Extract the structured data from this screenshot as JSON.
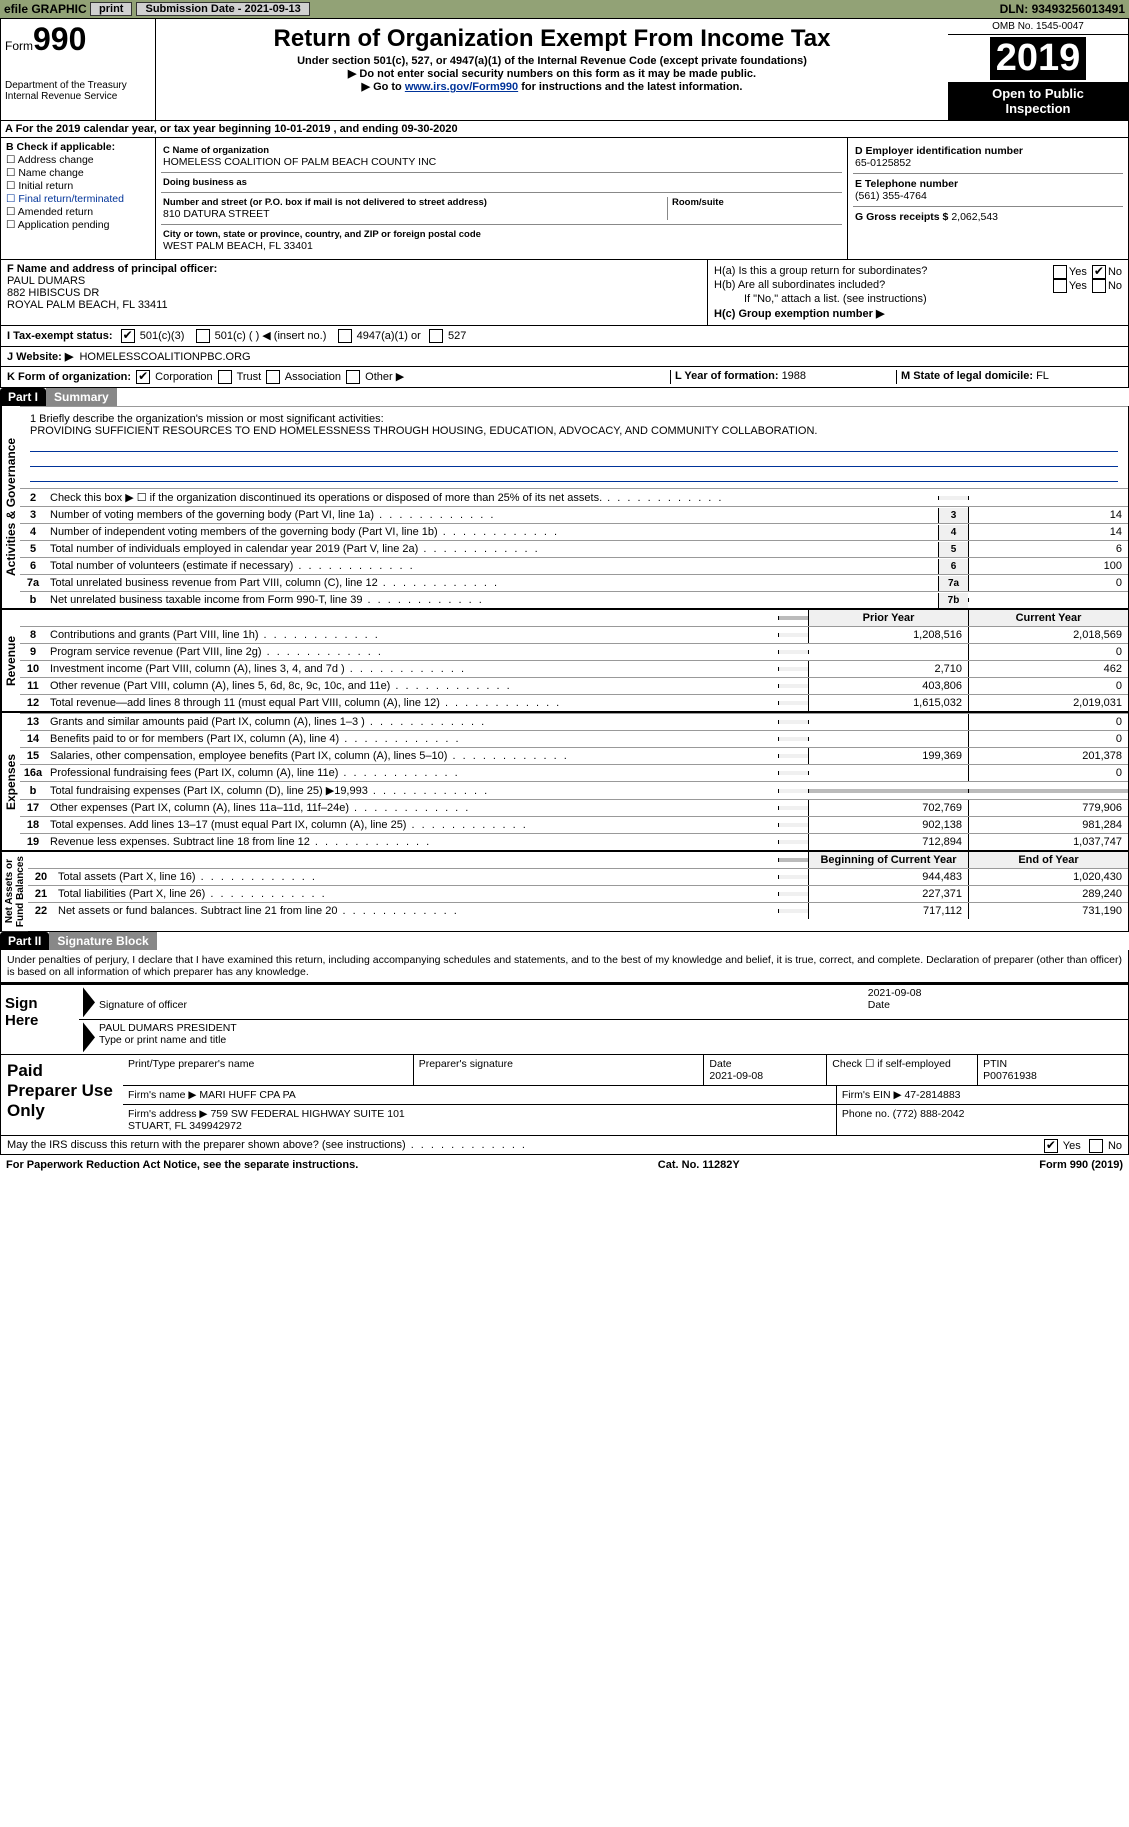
{
  "topbar": {
    "efile": "efile GRAPHIC",
    "print": "print",
    "subdate_label": "Submission Date - ",
    "subdate": "2021-09-13",
    "dln_label": "DLN: ",
    "dln": "93493256013491"
  },
  "header": {
    "form_word": "Form",
    "form_num": "990",
    "dept": "Department of the Treasury\nInternal Revenue Service",
    "title": "Return of Organization Exempt From Income Tax",
    "sub1": "Under section 501(c), 527, or 4947(a)(1) of the Internal Revenue Code (except private foundations)",
    "sub2": "▶ Do not enter social security numbers on this form as it may be made public.",
    "sub3_pre": "▶ Go to ",
    "sub3_link": "www.irs.gov/Form990",
    "sub3_post": " for instructions and the latest information.",
    "omb": "OMB No. 1545-0047",
    "year": "2019",
    "otp": "Open to Public\nInspection"
  },
  "line_a": "A For the 2019 calendar year, or tax year beginning 10-01-2019   , and ending 09-30-2020",
  "box_b": {
    "label": "B Check if applicable:",
    "items": [
      "Address change",
      "Name change",
      "Initial return",
      "Final return/terminated",
      "Amended return",
      "Application pending"
    ]
  },
  "box_c": {
    "name_label": "C Name of organization",
    "name": "HOMELESS COALITION OF PALM BEACH COUNTY INC",
    "dba_label": "Doing business as",
    "dba": "",
    "addr_label": "Number and street (or P.O. box if mail is not delivered to street address)",
    "room_label": "Room/suite",
    "addr": "810 DATURA STREET",
    "city_label": "City or town, state or province, country, and ZIP or foreign postal code",
    "city": "WEST PALM BEACH, FL  33401"
  },
  "box_d": {
    "label": "D Employer identification number",
    "value": "65-0125852"
  },
  "box_e": {
    "label": "E Telephone number",
    "value": "(561) 355-4764"
  },
  "box_g": {
    "label": "G Gross receipts $",
    "value": "2,062,543"
  },
  "box_f": {
    "label": "F  Name and address of principal officer:",
    "name": "PAUL DUMARS",
    "addr1": "882 HIBISCUS DR",
    "addr2": "ROYAL PALM BEACH, FL  33411"
  },
  "box_h": {
    "ha": "H(a)  Is this a group return for subordinates?",
    "hb": "H(b)  Are all subordinates included?",
    "hb_note": "If \"No,\" attach a list. (see instructions)",
    "hc": "H(c)  Group exemption number ▶",
    "yes": "Yes",
    "no": "No"
  },
  "row_i": {
    "label": "I   Tax-exempt status:",
    "o1": "501(c)(3)",
    "o2": "501(c) (  ) ◀ (insert no.)",
    "o3": "4947(a)(1) or",
    "o4": "527"
  },
  "row_j": {
    "label": "J   Website: ▶",
    "value": "HOMELESSCOALITIONPBC.ORG"
  },
  "row_k": {
    "label": "K Form of organization:",
    "o1": "Corporation",
    "o2": "Trust",
    "o3": "Association",
    "o4": "Other ▶",
    "l_label": "L Year of formation: ",
    "l_val": "1988",
    "m_label": "M State of legal domicile: ",
    "m_val": "FL"
  },
  "part1": {
    "tab": "Part I",
    "title": "Summary"
  },
  "mission": {
    "q": "1   Briefly describe the organization's mission or most significant activities:",
    "text": "PROVIDING SUFFICIENT RESOURCES TO END HOMELESSNESS THROUGH HOUSING, EDUCATION, ADVOCACY, AND COMMUNITY COLLABORATION."
  },
  "gov_label": "Activities & Governance",
  "gov_lines": [
    {
      "n": "2",
      "d": "Check this box ▶ ☐  if the organization discontinued its operations or disposed of more than 25% of its net assets.",
      "b": "",
      "v": ""
    },
    {
      "n": "3",
      "d": "Number of voting members of the governing body (Part VI, line 1a)",
      "b": "3",
      "v": "14"
    },
    {
      "n": "4",
      "d": "Number of independent voting members of the governing body (Part VI, line 1b)",
      "b": "4",
      "v": "14"
    },
    {
      "n": "5",
      "d": "Total number of individuals employed in calendar year 2019 (Part V, line 2a)",
      "b": "5",
      "v": "6"
    },
    {
      "n": "6",
      "d": "Total number of volunteers (estimate if necessary)",
      "b": "6",
      "v": "100"
    },
    {
      "n": "7a",
      "d": "Total unrelated business revenue from Part VIII, column (C), line 12",
      "b": "7a",
      "v": "0"
    },
    {
      "n": "b",
      "d": "Net unrelated business taxable income from Form 990-T, line 39",
      "b": "7b",
      "v": ""
    }
  ],
  "rev_label": "Revenue",
  "col_headers": {
    "prior": "Prior Year",
    "curr": "Current Year"
  },
  "rev_lines": [
    {
      "n": "8",
      "d": "Contributions and grants (Part VIII, line 1h)",
      "p": "1,208,516",
      "c": "2,018,569"
    },
    {
      "n": "9",
      "d": "Program service revenue (Part VIII, line 2g)",
      "p": "",
      "c": "0"
    },
    {
      "n": "10",
      "d": "Investment income (Part VIII, column (A), lines 3, 4, and 7d )",
      "p": "2,710",
      "c": "462"
    },
    {
      "n": "11",
      "d": "Other revenue (Part VIII, column (A), lines 5, 6d, 8c, 9c, 10c, and 11e)",
      "p": "403,806",
      "c": "0"
    },
    {
      "n": "12",
      "d": "Total revenue—add lines 8 through 11 (must equal Part VIII, column (A), line 12)",
      "p": "1,615,032",
      "c": "2,019,031"
    }
  ],
  "exp_label": "Expenses",
  "exp_lines": [
    {
      "n": "13",
      "d": "Grants and similar amounts paid (Part IX, column (A), lines 1–3 )",
      "p": "",
      "c": "0"
    },
    {
      "n": "14",
      "d": "Benefits paid to or for members (Part IX, column (A), line 4)",
      "p": "",
      "c": "0"
    },
    {
      "n": "15",
      "d": "Salaries, other compensation, employee benefits (Part IX, column (A), lines 5–10)",
      "p": "199,369",
      "c": "201,378"
    },
    {
      "n": "16a",
      "d": "Professional fundraising fees (Part IX, column (A), line 11e)",
      "p": "",
      "c": "0"
    },
    {
      "n": "b",
      "d": "Total fundraising expenses (Part IX, column (D), line 25) ▶19,993",
      "p": "GRAY",
      "c": "GRAY"
    },
    {
      "n": "17",
      "d": "Other expenses (Part IX, column (A), lines 11a–11d, 11f–24e)",
      "p": "702,769",
      "c": "779,906"
    },
    {
      "n": "18",
      "d": "Total expenses. Add lines 13–17 (must equal Part IX, column (A), line 25)",
      "p": "902,138",
      "c": "981,284"
    },
    {
      "n": "19",
      "d": "Revenue less expenses. Subtract line 18 from line 12",
      "p": "712,894",
      "c": "1,037,747"
    }
  ],
  "na_label": "Net Assets or\nFund Balances",
  "na_headers": {
    "prior": "Beginning of Current Year",
    "curr": "End of Year"
  },
  "na_lines": [
    {
      "n": "20",
      "d": "Total assets (Part X, line 16)",
      "p": "944,483",
      "c": "1,020,430"
    },
    {
      "n": "21",
      "d": "Total liabilities (Part X, line 26)",
      "p": "227,371",
      "c": "289,240"
    },
    {
      "n": "22",
      "d": "Net assets or fund balances. Subtract line 21 from line 20",
      "p": "717,112",
      "c": "731,190"
    }
  ],
  "part2": {
    "tab": "Part II",
    "title": "Signature Block"
  },
  "jurat": "Under penalties of perjury, I declare that I have examined this return, including accompanying schedules and statements, and to the best of my knowledge and belief, it is true, correct, and complete. Declaration of preparer (other than officer) is based on all information of which preparer has any knowledge.",
  "sign": {
    "here": "Sign Here",
    "sig_label": "Signature of officer",
    "date_label": "Date",
    "date": "2021-09-08",
    "name": "PAUL DUMARS  PRESIDENT",
    "name_label": "Type or print name and title"
  },
  "paid": {
    "here": "Paid Preparer Use Only",
    "c1": "Print/Type preparer's name",
    "c2": "Preparer's signature",
    "c3": "Date",
    "c3v": "2021-09-08",
    "c4": "Check ☐ if self-employed",
    "c5": "PTIN",
    "c5v": "P00761938",
    "firm_label": "Firm's name   ▶",
    "firm": "MARI HUFF CPA PA",
    "ein_label": "Firm's EIN ▶",
    "ein": "47-2814883",
    "addr_label": "Firm's address ▶",
    "addr": "759 SW FEDERAL HIGHWAY SUITE 101\nSTUART, FL  349942972",
    "phone_label": "Phone no.",
    "phone": "(772) 888-2042"
  },
  "discuss": "May the IRS discuss this return with the preparer shown above? (see instructions)",
  "footer": {
    "left": "For Paperwork Reduction Act Notice, see the separate instructions.",
    "mid": "Cat. No. 11282Y",
    "right": "Form 990 (2019)"
  },
  "colors": {
    "topbar_bg": "#92a276",
    "link": "#003399"
  }
}
